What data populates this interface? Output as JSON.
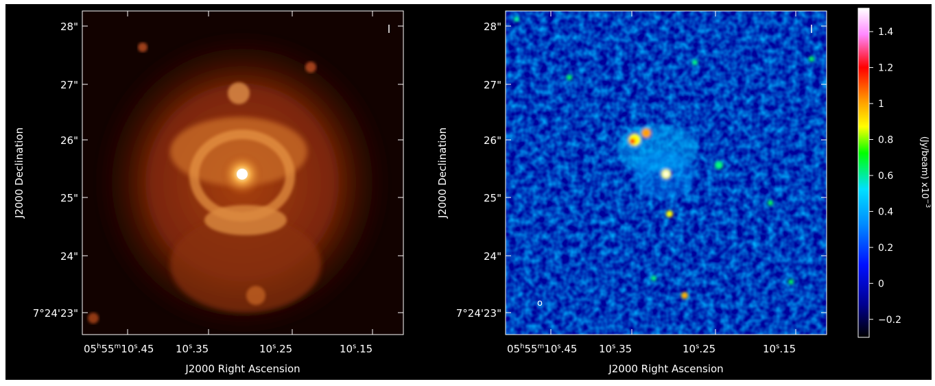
{
  "panels": [
    {
      "id": "left",
      "xlabel": "J2000 Right Ascension",
      "ylabel": "J2000 Declination",
      "colormap": "hot",
      "y_ticks": [
        "28\"",
        "27\"",
        "26\"",
        "25\"",
        "24\"",
        "7°24'23\""
      ],
      "x_ticks": [
        {
          "hms": "05",
          "h": "h",
          "m_val": "55",
          "m": "m",
          "s_val": "10",
          "s": "s",
          "frac": ".45"
        },
        {
          "s_val": "10",
          "s": "s",
          "frac": ".35"
        },
        {
          "s_val": "10",
          "s": "s",
          "frac": ".25"
        },
        {
          "s_val": "10",
          "s": "s",
          "frac": ".15"
        }
      ]
    },
    {
      "id": "right",
      "xlabel": "J2000 Right Ascension",
      "ylabel": "J2000 Declination",
      "colormap": "rainbow",
      "beam_marker": "o",
      "y_ticks": [
        "28\"",
        "27\"",
        "26\"",
        "25\"",
        "24\"",
        "7°24'23\""
      ],
      "x_ticks": [
        {
          "hms": "05",
          "h": "h",
          "m_val": "55",
          "m": "m",
          "s_val": "10",
          "s": "s",
          "frac": ".45"
        },
        {
          "s_val": "10",
          "s": "s",
          "frac": ".35"
        },
        {
          "s_val": "10",
          "s": "s",
          "frac": ".25"
        },
        {
          "s_val": "10",
          "s": "s",
          "frac": ".15"
        }
      ]
    }
  ],
  "colorbar": {
    "label": "(Jy/beam)  x10",
    "label_exp": "−3",
    "ticks": [
      "1.4",
      "1.2",
      "1",
      "0.8",
      "0.6",
      "0.4",
      "0.2",
      "0",
      "−0.2"
    ],
    "range": [
      -0.3,
      1.53
    ],
    "colors": [
      "#ffffff",
      "#ff66ff",
      "#ff0000",
      "#ff8800",
      "#ffff00",
      "#00ff00",
      "#00ffff",
      "#0088ff",
      "#0000ff",
      "#000066",
      "#000000"
    ]
  }
}
